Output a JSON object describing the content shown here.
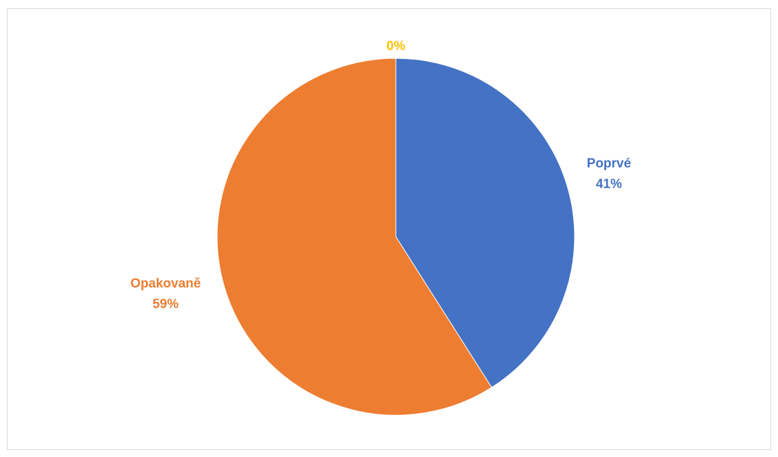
{
  "chart_data": {
    "type": "pie",
    "title": "",
    "legend": "none",
    "slices": [
      {
        "name": "Poprvé",
        "value": 41,
        "label": "41%",
        "color": "#4472C4"
      },
      {
        "name": "Opakovaně",
        "value": 59,
        "label": "59%",
        "color": "#ED7D31"
      },
      {
        "name": "",
        "value": 0,
        "label": "0%",
        "color": "#FFC000"
      }
    ]
  }
}
